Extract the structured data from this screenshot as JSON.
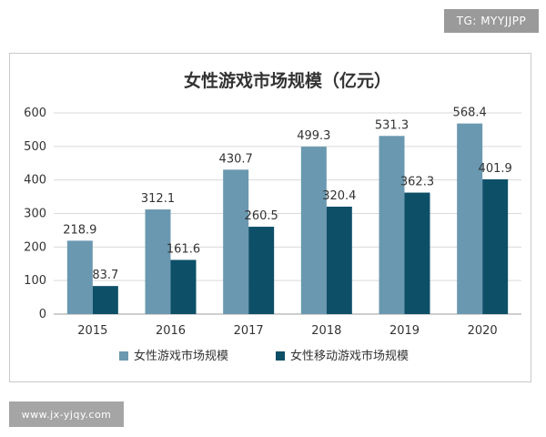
{
  "watermarks": {
    "top_right": "TG: MYYJJPP",
    "bottom_left": "www.jx-yjqy.com"
  },
  "chart_data": {
    "type": "bar",
    "title": "女性游戏市场规模（亿元）",
    "xlabel": "",
    "ylabel": "",
    "categories": [
      "2015",
      "2016",
      "2017",
      "2018",
      "2019",
      "2020"
    ],
    "yticks": [
      "0",
      "100",
      "200",
      "300",
      "400",
      "500",
      "600"
    ],
    "ylim": [
      0,
      600
    ],
    "grid": true,
    "legend_position": "bottom",
    "series": [
      {
        "name": "女性游戏市场规模",
        "color": "#6a98b0",
        "values": [
          218.9,
          312.1,
          430.7,
          499.3,
          531.3,
          568.4
        ],
        "labels": [
          "218.9",
          "312.1",
          "430.7",
          "499.3",
          "531.3",
          "568.4"
        ]
      },
      {
        "name": "女性移动游戏市场规模",
        "color": "#0e4f68",
        "values": [
          83.7,
          161.6,
          260.5,
          320.4,
          362.3,
          401.9
        ],
        "labels": [
          "83.7",
          "161.6",
          "260.5",
          "320.4",
          "362.3",
          "401.9"
        ]
      }
    ]
  }
}
